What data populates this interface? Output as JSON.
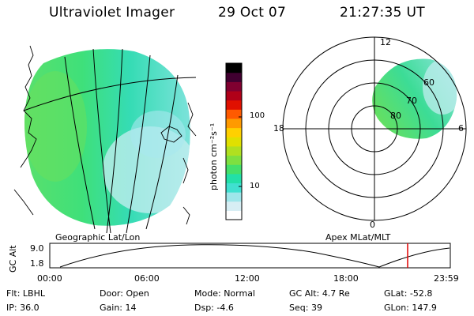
{
  "header": {
    "title": "Ultraviolet Imager",
    "date": "29 Oct 07",
    "time": "21:27:35 UT"
  },
  "left_panel": {
    "label": "Geographic Lat/Lon"
  },
  "right_panel": {
    "label": "Apex MLat/MLT",
    "mlt_labels": {
      "top": "12",
      "left": "18",
      "right": "6",
      "bottom": "0"
    },
    "lat_labels": [
      "60",
      "70",
      "80"
    ]
  },
  "colorbar": {
    "unit_label": "photon cm⁻²s⁻¹",
    "ticks": [
      "100",
      "10"
    ],
    "colors": [
      "#ffffff",
      "#d7eef4",
      "#9ee6ea",
      "#40e0d0",
      "#22e0a8",
      "#44e06a",
      "#7ee040",
      "#b0e020",
      "#e0e000",
      "#ffd000",
      "#ff9a00",
      "#ff5a00",
      "#e01000",
      "#b00018",
      "#800030",
      "#400030",
      "#000000"
    ]
  },
  "altitude_chart": {
    "y_label": "GC Alt",
    "y_ticks": [
      "9.0",
      "1.8"
    ],
    "x_ticks": [
      "00:00",
      "06:00",
      "12:00",
      "18:00",
      "23:59"
    ],
    "marker_color": "#e00000"
  },
  "status": {
    "row1": [
      {
        "label": "Flt:",
        "value": "LBHL"
      },
      {
        "label": "Door:",
        "value": "Open"
      },
      {
        "label": "Mode:",
        "value": "Normal"
      },
      {
        "label": "GC Alt:",
        "value": "4.7 Re"
      },
      {
        "label": "GLat:",
        "value": "-52.8"
      }
    ],
    "row2": [
      {
        "label": "IP:",
        "value": "36.0"
      },
      {
        "label": "Gain:",
        "value": "14"
      },
      {
        "label": "Dsp:",
        "value": "-4.6"
      },
      {
        "label": "Seq:",
        "value": "39"
      },
      {
        "label": "GLon:",
        "value": "147.9"
      }
    ]
  }
}
